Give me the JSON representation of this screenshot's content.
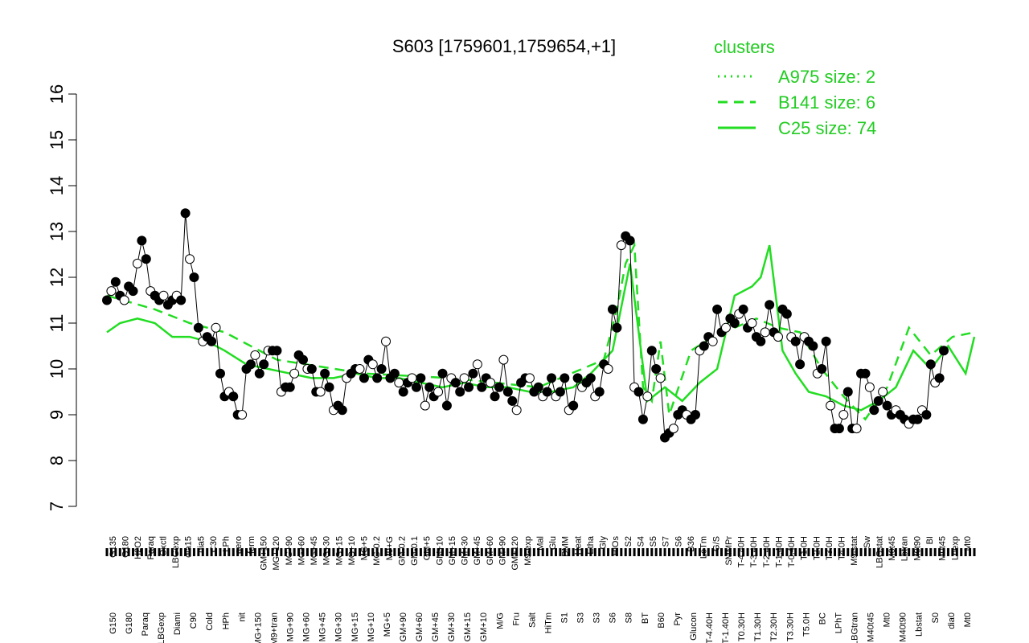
{
  "chart_data": {
    "type": "line",
    "title": "S603 [1759601,1759654,+1]",
    "xlabel": "",
    "ylabel": "",
    "ylim": [
      7,
      16
    ],
    "yticks": [
      7,
      8,
      9,
      10,
      11,
      12,
      13,
      14,
      15,
      16
    ],
    "colors": {
      "series": "#22dd22",
      "points": "#000000",
      "open_points": "#ffffff"
    },
    "legend": {
      "title": "clusters",
      "position": "top-right",
      "entries": [
        {
          "label": "A975 size: 2",
          "style": "dotted"
        },
        {
          "label": "B141 size: 6",
          "style": "dashed"
        },
        {
          "label": "C25 size: 74",
          "style": "solid"
        }
      ]
    },
    "xticks_top": [
      "G135",
      "G180",
      "H2O2",
      "Paraq",
      "Oxctl",
      "LBGexp",
      "dia15",
      "dia5",
      "C30",
      "LPh",
      "aero",
      "ferm",
      "GM+150",
      "MG+120",
      "MG+90",
      "MG+60",
      "MG+45",
      "MG+30",
      "MG+15",
      "MG+10",
      "MG+5",
      "MG-0.2",
      "M9+G",
      "GM-0.2",
      "GM-0.1",
      "GM+5",
      "GM+10",
      "GM+15",
      "GM+30",
      "GM+45",
      "GM+60",
      "GM+90",
      "GM+120",
      "M9-exp",
      "Mal",
      "Glu",
      "BMM",
      "Heat",
      "Etha",
      "Gly",
      "HiOs",
      "S2",
      "S4",
      "S5",
      "S7",
      "S6",
      "B36",
      "LoTm",
      "G/S",
      "SMMPr",
      "T-4.40H",
      "T-3.40H",
      "T-2.40H",
      "T-1.40H",
      "T-0.40H",
      "T1.0H",
      "T2.0H",
      "T3.0H",
      "T4.0H",
      "M9-stat",
      "Sw",
      "LBGstat",
      "M0t45",
      "Lbtran",
      "M0t90",
      "BI",
      "M0t45",
      "Lbexp",
      "Mt0"
    ],
    "xticks_bottom": [
      "G150",
      "G180",
      "Paraq",
      "LBGexp",
      "Diami",
      "C90",
      "Cold",
      "HPh",
      "nit",
      "MG+150",
      "M9+tran",
      "MG+90",
      "MG+60",
      "MG+45",
      "MG+30",
      "MG+15",
      "MG+10",
      "MG+5",
      "GM+90",
      "GM+60",
      "GM+45",
      "GM+30",
      "GM+15",
      "GM+10",
      "M/G",
      "Fru",
      "Salt",
      "HiTm",
      "S1",
      "S3",
      "S3",
      "S6",
      "S8",
      "BT",
      "B60",
      "Pyr",
      "Glucon",
      "T-4.40H",
      "T-1.40H",
      "T0.30H",
      "T1.30H",
      "T2.30H",
      "T3.30H",
      "T5.0H",
      "BC",
      "LPhT",
      "LBGtran",
      "M40t45",
      "Mt0",
      "M40t90",
      "Lbstat",
      "S0",
      "dia0",
      "Mt0"
    ],
    "x": [
      1,
      2,
      3,
      4,
      5,
      6,
      7,
      8,
      9,
      10,
      11,
      12,
      13,
      14,
      15,
      16,
      17,
      18,
      19,
      20,
      21,
      22,
      23,
      24,
      25,
      26,
      27,
      28,
      29,
      30,
      31,
      32,
      33,
      34,
      35,
      36,
      37,
      38,
      39,
      40,
      41,
      42,
      43,
      44,
      45,
      46,
      47,
      48,
      49,
      50,
      51,
      52,
      53,
      54,
      55,
      56,
      57,
      58,
      59,
      60,
      61,
      62,
      63,
      64,
      65,
      66,
      67,
      68,
      69,
      70,
      71,
      72,
      73,
      74,
      75,
      76,
      77,
      78,
      79,
      80,
      81,
      82,
      83,
      84,
      85,
      86,
      87,
      88,
      89,
      90,
      91,
      92,
      93,
      94,
      95,
      96,
      97,
      98,
      99,
      100,
      101,
      102,
      103,
      104,
      105,
      106,
      107,
      108,
      109,
      110,
      111,
      112,
      113,
      114,
      115,
      116,
      117,
      118,
      119,
      120,
      121,
      122,
      123,
      124,
      125,
      126,
      127,
      128,
      129,
      130,
      131,
      132,
      133,
      134,
      135,
      136,
      137,
      138,
      139,
      140,
      141,
      142,
      143,
      144,
      145,
      146,
      147,
      148,
      149,
      150,
      151,
      152,
      153,
      154,
      155,
      156,
      157,
      158,
      159,
      160,
      161,
      162,
      163,
      164,
      165,
      166,
      167,
      168,
      169,
      170,
      171,
      172,
      173,
      174,
      175,
      176,
      177,
      178,
      179,
      180,
      181,
      182,
      183,
      184,
      185,
      186,
      187,
      188,
      189,
      190,
      191,
      192,
      193,
      194,
      195,
      196,
      197,
      198,
      199,
      200
    ],
    "points": [
      11.5,
      11.7,
      11.9,
      11.6,
      11.5,
      11.8,
      11.7,
      12.3,
      12.8,
      12.4,
      11.7,
      11.6,
      11.5,
      11.6,
      11.4,
      11.5,
      11.6,
      11.5,
      13.4,
      12.4,
      12.0,
      10.9,
      10.6,
      10.7,
      10.6,
      10.9,
      9.9,
      9.4,
      9.5,
      9.4,
      9.0,
      9.0,
      10.0,
      10.1,
      10.3,
      9.9,
      10.1,
      10.4,
      10.4,
      10.4,
      9.5,
      9.6,
      9.6,
      9.9,
      10.3,
      10.2,
      10.0,
      10.0,
      9.5,
      9.5,
      9.9,
      9.6,
      9.1,
      9.2,
      9.1,
      9.8,
      9.9,
      10.0,
      10.0,
      9.8,
      10.2,
      10.1,
      9.8,
      10.0,
      10.6,
      9.8,
      9.9,
      9.7,
      9.5,
      9.7,
      9.8,
      9.6,
      9.8,
      9.2,
      9.6,
      9.4,
      9.5,
      9.9,
      9.2,
      9.8,
      9.7,
      9.5,
      9.8,
      9.6,
      9.9,
      10.1,
      9.6,
      9.8,
      9.7,
      9.4,
      9.6,
      10.2,
      9.5,
      9.3,
      9.1,
      9.7,
      9.8,
      9.8,
      9.5,
      9.6,
      9.4,
      9.5,
      9.8,
      9.4,
      9.5,
      9.8,
      9.1,
      9.2,
      9.8,
      9.6,
      9.7,
      9.8,
      9.4,
      9.5,
      10.1,
      10.0,
      11.3,
      10.9,
      12.7,
      12.9,
      12.8,
      9.6,
      9.5,
      8.9,
      9.4,
      10.4,
      10.0,
      9.8,
      8.5,
      8.6,
      8.7,
      9.0,
      9.1,
      9.0,
      8.9,
      9.0,
      10.4,
      10.5,
      10.7,
      10.6,
      11.3,
      10.8,
      10.9,
      11.1,
      11.0,
      11.2,
      11.3,
      10.9,
      11.0,
      10.7,
      10.6,
      10.8,
      11.4,
      10.8,
      10.7,
      11.3,
      11.2,
      10.7,
      10.6,
      10.1,
      10.7,
      10.6,
      10.5,
      9.9,
      10.0,
      10.6,
      9.2,
      8.7,
      8.7,
      9.0,
      9.5,
      8.7,
      8.7,
      9.9,
      9.9,
      9.6,
      9.1,
      9.3,
      9.5,
      9.2,
      9.0,
      9.1,
      9.0,
      8.9,
      8.8,
      8.9,
      8.9,
      9.1,
      9.0,
      10.1,
      9.7,
      9.8,
      10.4
    ],
    "series": [
      {
        "name": "C25 size: 74",
        "style": "solid",
        "x": [
          1,
          4,
          8,
          12,
          16,
          20,
          24,
          28,
          33,
          38,
          43,
          48,
          53,
          58,
          63,
          68,
          73,
          78,
          83,
          88,
          93,
          98,
          103,
          108,
          112,
          117,
          121,
          125,
          129,
          133,
          137,
          141,
          145,
          149,
          151,
          153,
          156,
          159,
          162,
          166,
          170,
          174,
          178,
          182,
          186,
          190,
          194,
          198,
          200
        ],
        "values": [
          10.8,
          11.0,
          11.1,
          11.0,
          10.7,
          10.7,
          10.6,
          10.4,
          10.1,
          10.0,
          9.9,
          9.8,
          9.8,
          9.9,
          9.8,
          9.8,
          9.7,
          9.6,
          9.7,
          9.6,
          9.6,
          9.5,
          9.5,
          9.6,
          9.9,
          10.4,
          12.3,
          9.3,
          9.6,
          9.3,
          9.7,
          10.0,
          11.6,
          11.8,
          12.0,
          12.7,
          10.4,
          9.9,
          9.5,
          9.4,
          9.2,
          9.1,
          9.3,
          9.6,
          10.4,
          10.0,
          10.5,
          9.9,
          10.7
        ]
      },
      {
        "name": "B141 size: 6",
        "style": "dashed",
        "x": [
          1,
          12,
          20,
          28,
          40,
          60,
          80,
          100,
          115,
          118,
          120,
          122,
          124,
          126,
          128,
          130,
          135,
          140,
          145,
          150,
          155,
          160,
          165,
          170,
          175,
          180,
          185,
          190,
          195,
          200
        ],
        "values": [
          11.6,
          11.3,
          11.0,
          10.8,
          10.2,
          9.9,
          9.8,
          9.6,
          10.2,
          11.3,
          12.3,
          12.7,
          9.6,
          9.3,
          10.6,
          9.0,
          10.4,
          10.7,
          10.9,
          11.1,
          10.9,
          10.8,
          10.0,
          9.4,
          8.9,
          9.6,
          10.9,
          10.3,
          10.7,
          10.8
        ]
      },
      {
        "name": "A975 size: 2",
        "style": "dotted",
        "x": [],
        "values": []
      }
    ]
  }
}
